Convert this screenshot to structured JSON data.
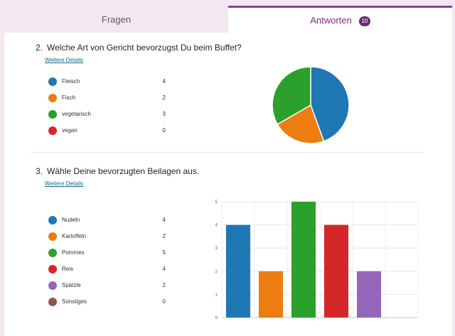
{
  "tabs": {
    "fragen": "Fragen",
    "antworten": "Antworten",
    "antworten_count": "10"
  },
  "questions": [
    {
      "number": "2.",
      "title": "Welche Art von Gericht bevorzugst Du beim Buffet?",
      "details_link": "Weitere Details",
      "options": [
        {
          "label": "Fleisch",
          "count": "4",
          "color": "#1f77b4"
        },
        {
          "label": "Fisch",
          "count": "2",
          "color": "#ed7d10"
        },
        {
          "label": "vegetarisch",
          "count": "3",
          "color": "#2ca02c"
        },
        {
          "label": "vegan",
          "count": "0",
          "color": "#d62728"
        }
      ]
    },
    {
      "number": "3.",
      "title": "Wähle Deine bevorzugten Beilagen aus.",
      "details_link": "Weitere Details",
      "options": [
        {
          "label": "Nudeln",
          "count": "4",
          "color": "#1f77b4"
        },
        {
          "label": "Kartoffeln",
          "count": "2",
          "color": "#ed7d10"
        },
        {
          "label": "Pommes",
          "count": "5",
          "color": "#2ca02c"
        },
        {
          "label": "Reis",
          "count": "4",
          "color": "#d62728"
        },
        {
          "label": "Spätzle",
          "count": "2",
          "color": "#9467bd"
        },
        {
          "label": "Sonstiges",
          "count": "0",
          "color": "#8c564b"
        }
      ]
    }
  ],
  "chart_data": [
    {
      "type": "pie",
      "categories": [
        "Fleisch",
        "Fisch",
        "vegetarisch",
        "vegan"
      ],
      "values": [
        4,
        2,
        3,
        0
      ],
      "colors": [
        "#1f77b4",
        "#ed7d10",
        "#2ca02c",
        "#d62728"
      ],
      "title": ""
    },
    {
      "type": "bar",
      "categories": [
        "Nudeln",
        "Kartoffeln",
        "Pommes",
        "Reis",
        "Spätzle",
        "Sonstiges"
      ],
      "values": [
        4,
        2,
        5,
        4,
        2,
        0
      ],
      "colors": [
        "#1f77b4",
        "#ed7d10",
        "#2ca02c",
        "#d62728",
        "#9467bd",
        "#8c564b"
      ],
      "ylim": [
        0,
        5
      ],
      "yticks": [
        "0",
        "1",
        "2",
        "3",
        "4",
        "5"
      ],
      "grid": true,
      "title": ""
    }
  ]
}
